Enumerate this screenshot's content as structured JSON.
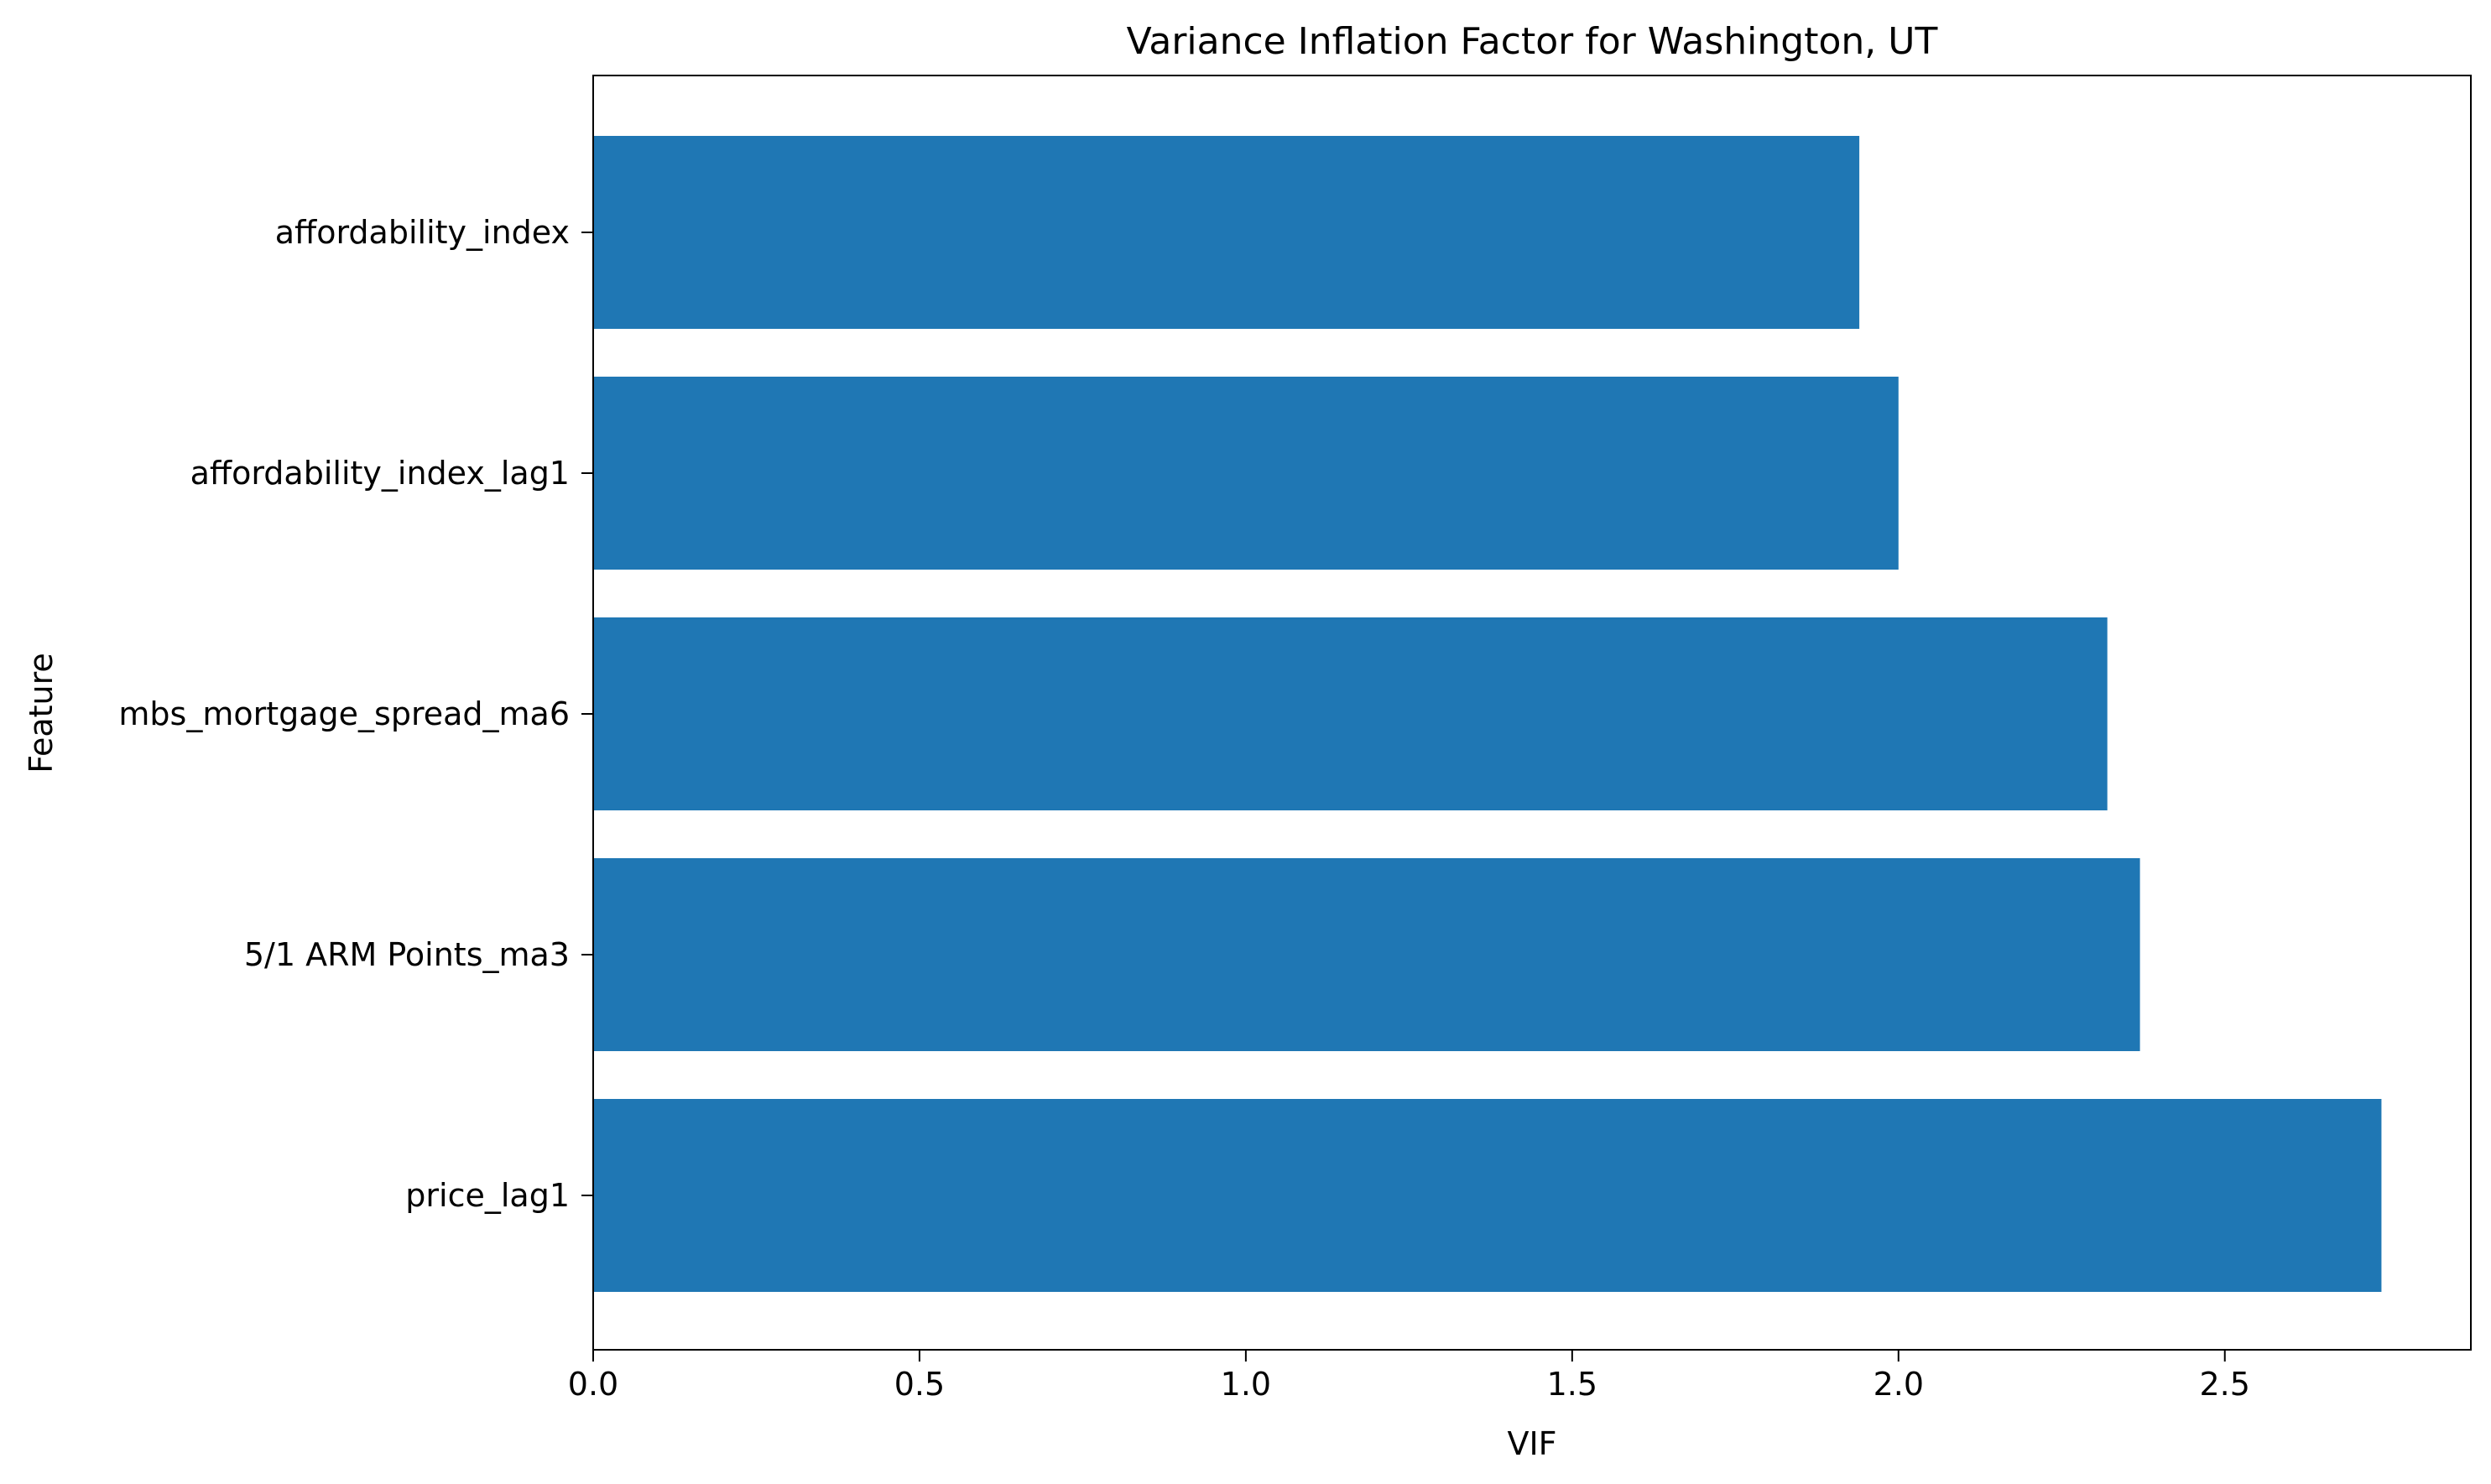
{
  "chart_data": {
    "type": "bar",
    "orientation": "horizontal",
    "title": "Variance Inflation Factor for Washington, UT",
    "xlabel": "VIF",
    "ylabel": "Feature",
    "categories": [
      "affordability_index",
      "affordability_index_lag1",
      "mbs_mortgage_spread_ma6",
      "5/1 ARM Points_ma3",
      "price_lag1"
    ],
    "values": [
      1.94,
      2.0,
      2.32,
      2.37,
      2.74
    ],
    "xlim": [
      0,
      2.877
    ],
    "xticks": [
      0.0,
      0.5,
      1.0,
      1.5,
      2.0,
      2.5
    ],
    "xtick_labels": [
      "0.0",
      "0.5",
      "1.0",
      "1.5",
      "2.0",
      "2.5"
    ],
    "bar_color": "#1f77b4",
    "grid": false,
    "legend": "none"
  }
}
